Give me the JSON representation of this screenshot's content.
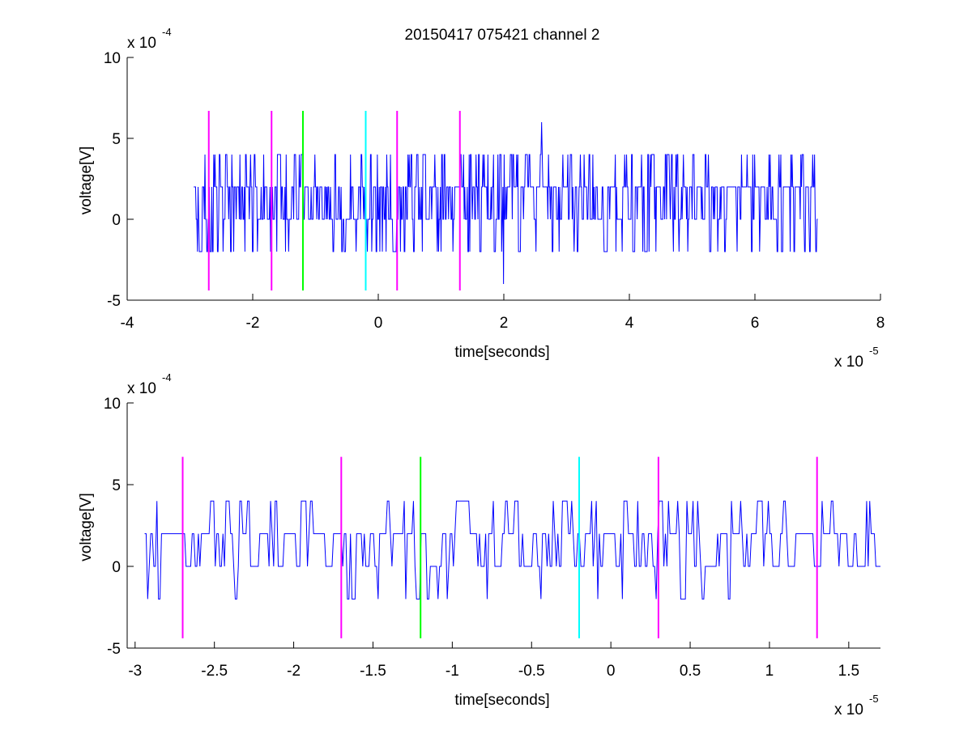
{
  "figure_title": "20150417 075421 channel 2",
  "chart_data": [
    {
      "type": "line",
      "title": "20150417 075421 channel 2",
      "xlabel": "time[seconds]",
      "ylabel": "voltage[V]",
      "x_multiplier_label": "x 10",
      "x_multiplier_exp": "-5",
      "y_multiplier_label": "x 10",
      "y_multiplier_exp": "-4",
      "xlim": [
        -4e-05,
        8e-05
      ],
      "ylim": [
        -0.0005,
        0.001
      ],
      "x_ticks": [
        -4e-05,
        -2e-05,
        0,
        2e-05,
        4e-05,
        6e-05,
        8e-05
      ],
      "x_tick_labels": [
        "-4",
        "-2",
        "0",
        "2",
        "4",
        "6",
        "8"
      ],
      "y_ticks": [
        -0.0005,
        0,
        0.0005,
        0.001
      ],
      "y_tick_labels": [
        "-5",
        "0",
        "5",
        "10"
      ],
      "grid": false,
      "series": [
        {
          "color": "#0000ff",
          "x_range": [
            -2.94e-05,
            7e-05
          ],
          "levels": [
            -0.0004,
            -0.0002,
            0,
            0.0002,
            0.0004,
            0.0006
          ],
          "y_extent": [
            -0.0004,
            0.0006
          ],
          "notable_points": [
            {
              "x": 2.6e-05,
              "y": 0.0006
            },
            {
              "x": 2e-05,
              "y": -0.0004
            }
          ]
        }
      ],
      "markers": [
        {
          "x": -2.7e-05,
          "color": "#ff00ff",
          "y_range": [
            -0.00044,
            0.00067
          ]
        },
        {
          "x": -1.7e-05,
          "color": "#ff00ff",
          "y_range": [
            -0.00044,
            0.00067
          ]
        },
        {
          "x": -1.2e-05,
          "color": "#00ff00",
          "y_range": [
            -0.00044,
            0.00067
          ]
        },
        {
          "x": -2e-06,
          "color": "#00ffff",
          "y_range": [
            -0.00044,
            0.00067
          ]
        },
        {
          "x": 3e-06,
          "color": "#ff00ff",
          "y_range": [
            -0.00044,
            0.00067
          ]
        },
        {
          "x": 1.3e-05,
          "color": "#ff00ff",
          "y_range": [
            -0.00044,
            0.00067
          ]
        }
      ]
    },
    {
      "type": "line",
      "title": "",
      "xlabel": "time[seconds]",
      "ylabel": "voltage[V]",
      "x_multiplier_label": "x 10",
      "x_multiplier_exp": "-5",
      "y_multiplier_label": "x 10",
      "y_multiplier_exp": "-4",
      "xlim": [
        -3.05e-05,
        1.7e-05
      ],
      "ylim": [
        -0.0005,
        0.001
      ],
      "x_ticks": [
        -3e-05,
        -2.5e-05,
        -2e-05,
        -1.5e-05,
        -1e-05,
        -5e-06,
        0,
        5e-06,
        1e-05,
        1.5e-05
      ],
      "x_tick_labels": [
        "-3",
        "-2.5",
        "-2",
        "-1.5",
        "-1",
        "-0.5",
        "0",
        "0.5",
        "1",
        "1.5"
      ],
      "y_ticks": [
        -0.0005,
        0,
        0.0005,
        0.001
      ],
      "y_tick_labels": [
        "-5",
        "0",
        "5",
        "10"
      ],
      "grid": false,
      "series": [
        {
          "color": "#0000ff",
          "x_range": [
            -2.94e-05,
            1.7e-05
          ],
          "levels": [
            -0.0002,
            0,
            0.0002,
            0.0004
          ],
          "y_extent": [
            -0.0002,
            0.0004
          ]
        }
      ],
      "markers": [
        {
          "x": -2.7e-05,
          "color": "#ff00ff",
          "y_range": [
            -0.00044,
            0.00067
          ]
        },
        {
          "x": -1.7e-05,
          "color": "#ff00ff",
          "y_range": [
            -0.00044,
            0.00067
          ]
        },
        {
          "x": -1.2e-05,
          "color": "#00ff00",
          "y_range": [
            -0.00044,
            0.00067
          ]
        },
        {
          "x": -2e-06,
          "color": "#00ffff",
          "y_range": [
            -0.00044,
            0.00067
          ]
        },
        {
          "x": 3e-06,
          "color": "#ff00ff",
          "y_range": [
            -0.00044,
            0.00067
          ]
        },
        {
          "x": 1.3e-05,
          "color": "#ff00ff",
          "y_range": [
            -0.00044,
            0.00067
          ]
        }
      ]
    }
  ]
}
